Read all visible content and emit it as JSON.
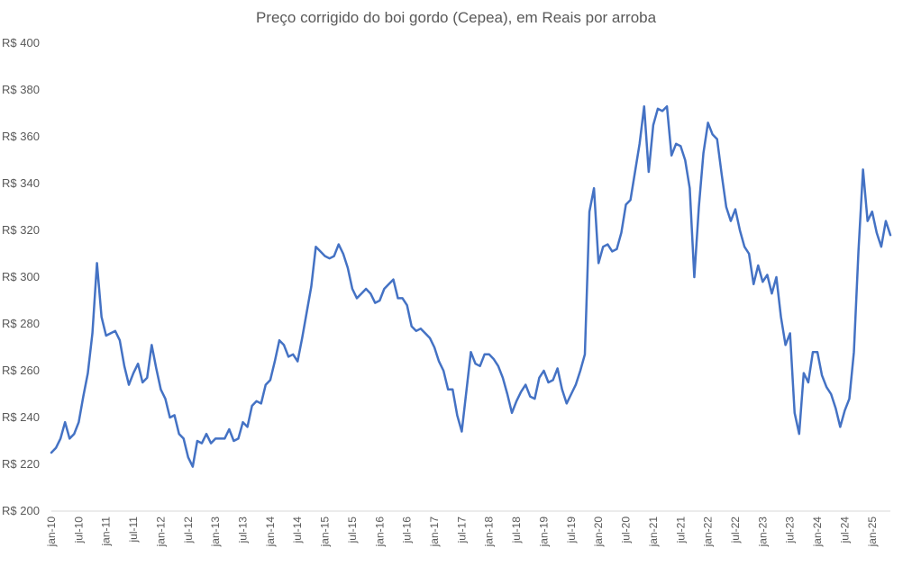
{
  "chart_data": {
    "type": "line",
    "title": "Preço corrigido do boi gordo (Cepea), em Reais por arroba",
    "xlabel": "",
    "ylabel": "",
    "ylim": [
      200,
      400
    ],
    "grid": false,
    "legend": "none",
    "line_color": "#4472C4",
    "y_ticks": [
      {
        "value": 200,
        "label": "R$ 200"
      },
      {
        "value": 220,
        "label": "R$ 220"
      },
      {
        "value": 240,
        "label": "R$ 240"
      },
      {
        "value": 260,
        "label": "R$ 260"
      },
      {
        "value": 280,
        "label": "R$ 280"
      },
      {
        "value": 300,
        "label": "R$ 300"
      },
      {
        "value": 320,
        "label": "R$ 320"
      },
      {
        "value": 340,
        "label": "R$ 340"
      },
      {
        "value": 360,
        "label": "R$ 360"
      },
      {
        "value": 380,
        "label": "R$ 380"
      },
      {
        "value": 400,
        "label": "R$ 400"
      }
    ],
    "x_ticks": [
      {
        "index": 0,
        "label": "jan-10"
      },
      {
        "index": 6,
        "label": "jul-10"
      },
      {
        "index": 12,
        "label": "jan-11"
      },
      {
        "index": 18,
        "label": "jul-11"
      },
      {
        "index": 24,
        "label": "jan-12"
      },
      {
        "index": 30,
        "label": "jul-12"
      },
      {
        "index": 36,
        "label": "jan-13"
      },
      {
        "index": 42,
        "label": "jul-13"
      },
      {
        "index": 48,
        "label": "jan-14"
      },
      {
        "index": 54,
        "label": "jul-14"
      },
      {
        "index": 60,
        "label": "jan-15"
      },
      {
        "index": 66,
        "label": "jul-15"
      },
      {
        "index": 72,
        "label": "jan-16"
      },
      {
        "index": 78,
        "label": "jul-16"
      },
      {
        "index": 84,
        "label": "jan-17"
      },
      {
        "index": 90,
        "label": "jul-17"
      },
      {
        "index": 96,
        "label": "jan-18"
      },
      {
        "index": 102,
        "label": "jul-18"
      },
      {
        "index": 108,
        "label": "jan-19"
      },
      {
        "index": 114,
        "label": "jul-19"
      },
      {
        "index": 120,
        "label": "jan-20"
      },
      {
        "index": 126,
        "label": "jul-20"
      },
      {
        "index": 132,
        "label": "jan-21"
      },
      {
        "index": 138,
        "label": "jul-21"
      },
      {
        "index": 144,
        "label": "jan-22"
      },
      {
        "index": 150,
        "label": "jul-22"
      },
      {
        "index": 156,
        "label": "jan-23"
      },
      {
        "index": 162,
        "label": "jul-23"
      },
      {
        "index": 168,
        "label": "jan-24"
      },
      {
        "index": 174,
        "label": "jul-24"
      },
      {
        "index": 180,
        "label": "jan-25"
      }
    ],
    "series": [
      {
        "values": [
          225,
          227,
          231,
          238,
          231,
          233,
          238,
          249,
          259,
          276,
          306,
          283,
          275,
          276,
          277,
          273,
          262,
          254,
          259,
          263,
          255,
          257,
          271,
          261,
          252,
          248,
          240,
          241,
          233,
          231,
          223,
          219,
          230,
          229,
          233,
          229,
          231,
          231,
          231,
          235,
          230,
          231,
          238,
          236,
          245,
          247,
          246,
          254,
          256,
          264,
          273,
          271,
          266,
          267,
          264,
          274,
          285,
          296,
          313,
          311,
          309,
          308,
          309,
          314,
          310,
          304,
          295,
          291,
          293,
          295,
          293,
          289,
          290,
          295,
          297,
          299,
          291,
          291,
          288,
          279,
          277,
          278,
          276,
          274,
          270,
          264,
          260,
          252,
          252,
          241,
          234,
          251,
          268,
          263,
          262,
          267,
          267,
          265,
          262,
          257,
          250,
          242,
          247,
          251,
          254,
          249,
          248,
          257,
          260,
          255,
          256,
          261,
          252,
          246,
          250,
          254,
          260,
          267,
          328,
          338,
          306,
          313,
          314,
          311,
          312,
          319,
          331,
          333,
          345,
          357,
          373,
          345,
          365,
          372,
          371,
          373,
          352,
          357,
          356,
          350,
          338,
          300,
          330,
          353,
          366,
          361,
          359,
          344,
          330,
          324,
          329,
          320,
          313,
          310,
          297,
          305,
          298,
          301,
          293,
          300,
          283,
          271,
          276,
          242,
          233,
          259,
          255,
          268,
          268,
          258,
          253,
          250,
          244,
          236,
          243,
          248,
          268,
          311,
          346,
          324,
          328,
          319,
          313,
          324,
          318
        ]
      }
    ]
  }
}
